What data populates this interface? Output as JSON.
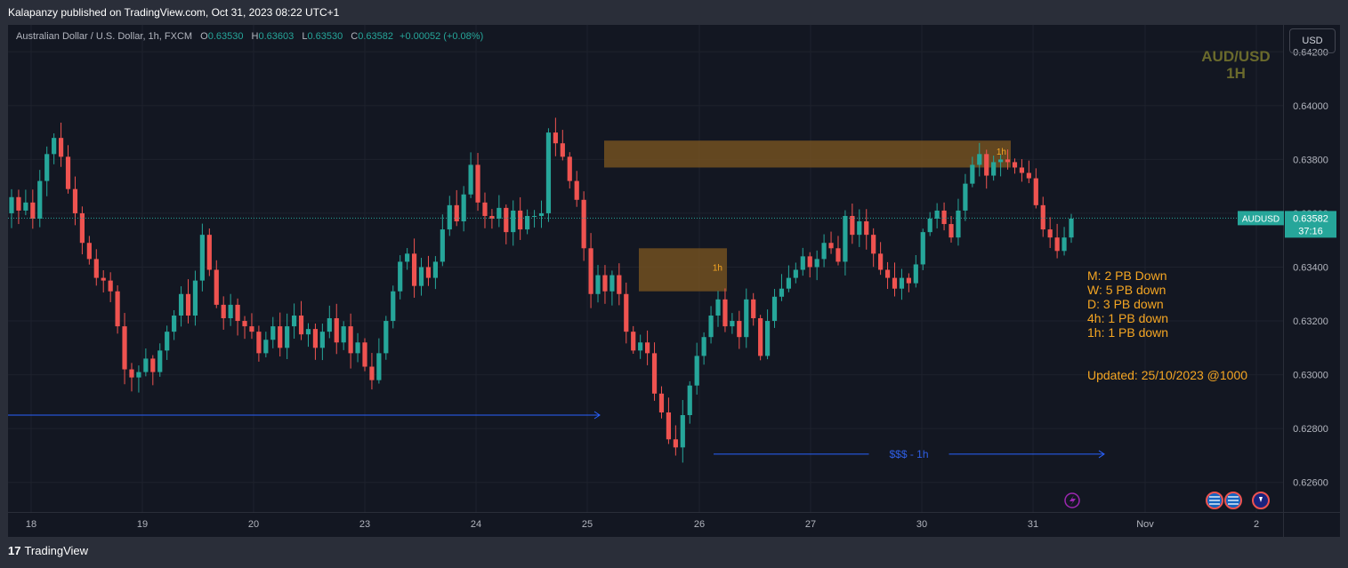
{
  "header": {
    "published": "Kalapanzy published on TradingView.com, Oct 31, 2023 08:22 UTC+1"
  },
  "legend": {
    "title": "Australian Dollar / U.S. Dollar, 1h, FXCM",
    "open_label": "O",
    "open": "0.63530",
    "high_label": "H",
    "high": "0.63603",
    "low_label": "L",
    "low": "0.63530",
    "close_label": "C",
    "close": "0.63582",
    "change": "+0.00052 (+0.08%)"
  },
  "currency_button": "USD",
  "watermark": {
    "line1": "AUD/USD",
    "line2": "1H"
  },
  "price_tag": {
    "symbol": "AUDUSD",
    "price": "0.63582",
    "countdown": "37:16"
  },
  "notes": [
    "M: 2 PB Down",
    "W: 5 PB down",
    "D: 3 PB down",
    "4h: 1 PB down",
    "1h: 1 PB down"
  ],
  "updated": "Updated: 25/10/2023 @1000",
  "footer": {
    "brand": "TradingView",
    "logo": "17"
  },
  "colors": {
    "up": "#26a69a",
    "down": "#ef5350",
    "background": "#131722",
    "zone": "#7a5520",
    "arrow": "#2962ff",
    "note": "#f5a623"
  },
  "chart_data": {
    "type": "candlestick",
    "yticks": [
      "0.64200",
      "0.64000",
      "0.63800",
      "0.63600",
      "0.63400",
      "0.63200",
      "0.63000",
      "0.62800",
      "0.62600"
    ],
    "xticks": [
      "18",
      "19",
      "20",
      "23",
      "24",
      "25",
      "26",
      "27",
      "30",
      "31",
      "Nov",
      "2"
    ],
    "ylim": [
      0.6249,
      0.643
    ],
    "current_price": 0.63582,
    "closes": [
      0.6366,
      0.6361,
      0.6364,
      0.6358,
      0.6372,
      0.6382,
      0.6388,
      0.6381,
      0.6369,
      0.636,
      0.6349,
      0.6343,
      0.6336,
      0.6335,
      0.6331,
      0.6318,
      0.6302,
      0.6299,
      0.6301,
      0.6306,
      0.6301,
      0.6309,
      0.6316,
      0.6322,
      0.633,
      0.6322,
      0.6335,
      0.6352,
      0.6339,
      0.6326,
      0.6321,
      0.6326,
      0.632,
      0.6318,
      0.6316,
      0.6308,
      0.6313,
      0.6318,
      0.631,
      0.6318,
      0.6322,
      0.6315,
      0.6317,
      0.631,
      0.6316,
      0.6321,
      0.6312,
      0.6318,
      0.6308,
      0.6312,
      0.6303,
      0.6298,
      0.6308,
      0.632,
      0.6331,
      0.6342,
      0.6345,
      0.6333,
      0.634,
      0.6336,
      0.6342,
      0.6354,
      0.6363,
      0.6357,
      0.6367,
      0.6378,
      0.6364,
      0.6359,
      0.6358,
      0.6362,
      0.6353,
      0.6361,
      0.6354,
      0.6359,
      0.6359,
      0.636,
      0.639,
      0.6386,
      0.6381,
      0.6372,
      0.6365,
      0.6347,
      0.633,
      0.6337,
      0.6331,
      0.6337,
      0.633,
      0.6316,
      0.6309,
      0.6312,
      0.6308,
      0.6293,
      0.6286,
      0.6276,
      0.6273,
      0.6285,
      0.6296,
      0.6307,
      0.6314,
      0.6322,
      0.6328,
      0.6318,
      0.632,
      0.6314,
      0.6328,
      0.6321,
      0.6307,
      0.632,
      0.6329,
      0.6332,
      0.6336,
      0.6339,
      0.6344,
      0.634,
      0.6343,
      0.6349,
      0.6347,
      0.6342,
      0.6359,
      0.6352,
      0.6357,
      0.6352,
      0.6345,
      0.6339,
      0.6336,
      0.6332,
      0.6336,
      0.6334,
      0.6341,
      0.6353,
      0.6358,
      0.6361,
      0.6356,
      0.6351,
      0.6361,
      0.6371,
      0.6378,
      0.6382,
      0.6374,
      0.6379,
      0.638,
      0.6379,
      0.6377,
      0.6375,
      0.6373,
      0.6363,
      0.6354,
      0.6351,
      0.6346,
      0.6351,
      0.6358
    ],
    "zones": [
      {
        "label": "1h",
        "top": 0.6387,
        "bottom": 0.6377
      },
      {
        "label": "1h",
        "top": 0.6347,
        "bottom": 0.6331
      }
    ],
    "lines": [
      {
        "label": "",
        "price": 0.6285
      },
      {
        "label": "$$$ - 1h",
        "price": 0.62705
      }
    ]
  }
}
